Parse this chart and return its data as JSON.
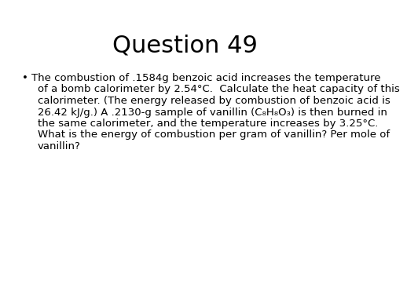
{
  "title": "Question 49",
  "title_fontsize": 22,
  "background_color": "#ffffff",
  "text_color": "#000000",
  "bullet_char": "•",
  "body_fontsize": 9.5,
  "line1": "The combustion of .1584g benzoic acid increases the temperature",
  "body_lines": [
    "of a bomb calorimeter by 2.54°C.  Calculate the heat capacity of this",
    "calorimeter. (The energy released by combustion of benzoic acid is",
    "26.42 kJ/g.) A .2130-g sample of vanillin (C₈H₈O₃) is then burned in",
    "the same calorimeter, and the temperature increases by 3.25°C.",
    "What is the energy of combustion per gram of vanillin? Per mole of",
    "vanillin?"
  ]
}
